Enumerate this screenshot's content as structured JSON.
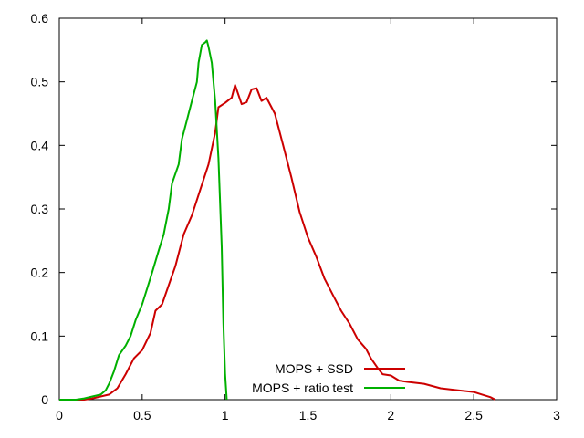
{
  "chart_data": {
    "type": "line",
    "title": "",
    "xlabel": "",
    "ylabel": "",
    "xlim": [
      0,
      3
    ],
    "ylim": [
      0,
      0.6
    ],
    "x_ticks": [
      0,
      0.5,
      1,
      1.5,
      2,
      2.5,
      3
    ],
    "x_tick_labels": [
      "0",
      "0.5",
      "1",
      "1.5",
      "2",
      "2.5",
      "3"
    ],
    "y_ticks": [
      0,
      0.1,
      0.2,
      0.3,
      0.4,
      0.5,
      0.6
    ],
    "y_tick_labels": [
      "0",
      "0.1",
      "0.2",
      "0.3",
      "0.4",
      "0.5",
      "0.6"
    ],
    "grid": false,
    "legend_position": "bottom-right",
    "series": [
      {
        "name": "MOPS + SSD",
        "color": "#cc0000",
        "points": [
          [
            0,
            0
          ],
          [
            0.1,
            0
          ],
          [
            0.15,
            0
          ],
          [
            0.2,
            0.002
          ],
          [
            0.25,
            0.005
          ],
          [
            0.3,
            0.008
          ],
          [
            0.35,
            0.018
          ],
          [
            0.4,
            0.04
          ],
          [
            0.45,
            0.065
          ],
          [
            0.5,
            0.078
          ],
          [
            0.55,
            0.105
          ],
          [
            0.58,
            0.14
          ],
          [
            0.62,
            0.15
          ],
          [
            0.66,
            0.18
          ],
          [
            0.7,
            0.21
          ],
          [
            0.75,
            0.26
          ],
          [
            0.8,
            0.29
          ],
          [
            0.85,
            0.33
          ],
          [
            0.9,
            0.37
          ],
          [
            0.94,
            0.42
          ],
          [
            0.96,
            0.46
          ],
          [
            1.0,
            0.467
          ],
          [
            1.04,
            0.475
          ],
          [
            1.06,
            0.495
          ],
          [
            1.1,
            0.465
          ],
          [
            1.13,
            0.468
          ],
          [
            1.16,
            0.488
          ],
          [
            1.19,
            0.49
          ],
          [
            1.22,
            0.47
          ],
          [
            1.25,
            0.475
          ],
          [
            1.3,
            0.45
          ],
          [
            1.35,
            0.4
          ],
          [
            1.4,
            0.35
          ],
          [
            1.45,
            0.295
          ],
          [
            1.5,
            0.255
          ],
          [
            1.55,
            0.225
          ],
          [
            1.6,
            0.19
          ],
          [
            1.65,
            0.165
          ],
          [
            1.7,
            0.14
          ],
          [
            1.75,
            0.12
          ],
          [
            1.8,
            0.095
          ],
          [
            1.85,
            0.08
          ],
          [
            1.88,
            0.065
          ],
          [
            1.92,
            0.05
          ],
          [
            1.95,
            0.04
          ],
          [
            2.0,
            0.038
          ],
          [
            2.05,
            0.03
          ],
          [
            2.1,
            0.028
          ],
          [
            2.2,
            0.025
          ],
          [
            2.3,
            0.018
          ],
          [
            2.4,
            0.015
          ],
          [
            2.5,
            0.012
          ],
          [
            2.55,
            0.008
          ],
          [
            2.6,
            0.004
          ],
          [
            2.63,
            0
          ]
        ]
      },
      {
        "name": "MOPS + ratio test",
        "color": "#00b000",
        "points": [
          [
            0,
            0
          ],
          [
            0.1,
            0
          ],
          [
            0.15,
            0.002
          ],
          [
            0.2,
            0.005
          ],
          [
            0.25,
            0.008
          ],
          [
            0.28,
            0.015
          ],
          [
            0.3,
            0.025
          ],
          [
            0.33,
            0.045
          ],
          [
            0.36,
            0.07
          ],
          [
            0.4,
            0.085
          ],
          [
            0.43,
            0.1
          ],
          [
            0.46,
            0.125
          ],
          [
            0.5,
            0.15
          ],
          [
            0.53,
            0.175
          ],
          [
            0.56,
            0.2
          ],
          [
            0.6,
            0.235
          ],
          [
            0.63,
            0.26
          ],
          [
            0.66,
            0.3
          ],
          [
            0.68,
            0.34
          ],
          [
            0.72,
            0.37
          ],
          [
            0.74,
            0.41
          ],
          [
            0.77,
            0.44
          ],
          [
            0.8,
            0.47
          ],
          [
            0.83,
            0.5
          ],
          [
            0.84,
            0.53
          ],
          [
            0.86,
            0.558
          ],
          [
            0.88,
            0.562
          ],
          [
            0.89,
            0.565
          ],
          [
            0.9,
            0.555
          ],
          [
            0.92,
            0.53
          ],
          [
            0.94,
            0.47
          ],
          [
            0.96,
            0.38
          ],
          [
            0.98,
            0.24
          ],
          [
            0.99,
            0.12
          ],
          [
            1.0,
            0.04
          ],
          [
            1.01,
            0
          ]
        ]
      }
    ]
  }
}
